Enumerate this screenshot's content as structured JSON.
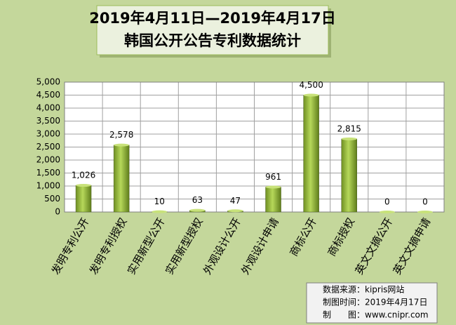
{
  "chart_data": {
    "type": "bar",
    "title": [
      "2019年4月11日—2019年4月17日",
      "韩国公开公告专利数据统计"
    ],
    "categories": [
      "发明专利公开",
      "发明专利授权",
      "实用新型公开",
      "实用新型授权",
      "外观设计公开",
      "外观设计申请",
      "商标公开",
      "商标授权",
      "英文文摘公开",
      "英文文摘申请"
    ],
    "values": [
      1026,
      2578,
      10,
      63,
      47,
      961,
      4500,
      2815,
      0,
      0
    ],
    "value_labels": [
      "1,026",
      "2,578",
      "10",
      "63",
      "47",
      "961",
      "4,500",
      "2,815",
      "0",
      "0"
    ],
    "color": "#8db33a",
    "ylim": [
      0,
      5000
    ],
    "yticks": [
      0,
      500,
      {
        "value": 1000,
        "label": "1,000"
      },
      {
        "value": 1500,
        "label": "1,500"
      },
      {
        "value": 2000,
        "label": "2,000"
      },
      {
        "value": 2500,
        "label": "2,500"
      },
      {
        "value": 3000,
        "label": "3,000"
      },
      {
        "value": 3500,
        "label": "3,500"
      },
      {
        "value": 4000,
        "label": "4,000"
      },
      {
        "value": 4500,
        "label": "4,500"
      },
      {
        "value": 5000,
        "label": "5,000"
      }
    ],
    "grid": true,
    "annotations": [
      "数据来源：kipris网站",
      "制图时间：2019年4月17日",
      "制　　图：www.cnipr.com"
    ]
  }
}
